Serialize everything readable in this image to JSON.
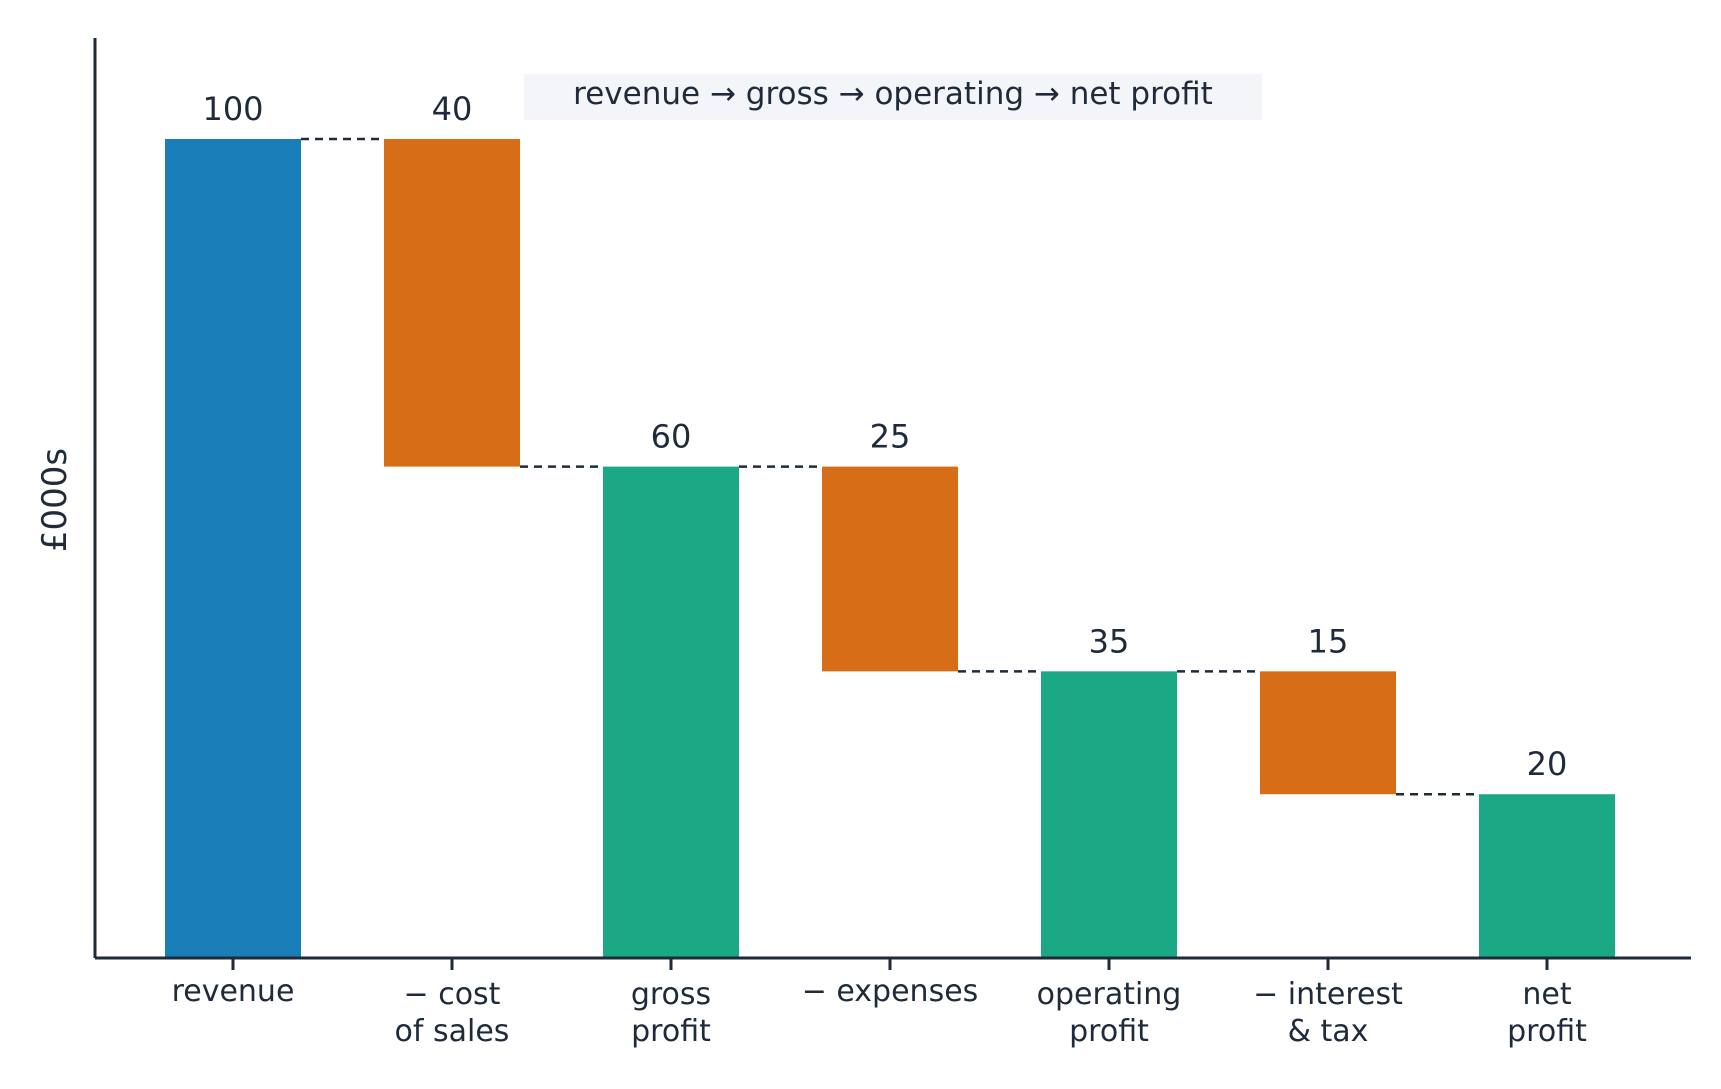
{
  "chart_data": {
    "type": "bar",
    "subtype": "waterfall",
    "title": "revenue → gross → operating → net profit",
    "xlabel": "",
    "ylabel": "£000s",
    "ylim": [
      0,
      106
    ],
    "grid": false,
    "legend": "none",
    "categories": [
      [
        "revenue"
      ],
      [
        "− cost",
        "of sales"
      ],
      [
        "gross",
        "profit"
      ],
      [
        "− expenses"
      ],
      [
        "operating",
        "profit"
      ],
      [
        "− interest",
        "& tax"
      ],
      [
        "net",
        "profit"
      ]
    ],
    "steps": [
      {
        "kind": "total",
        "value": 100,
        "label": "100"
      },
      {
        "kind": "decrease",
        "value": 40,
        "label": "40"
      },
      {
        "kind": "total",
        "value": 60,
        "label": "60"
      },
      {
        "kind": "decrease",
        "value": 25,
        "label": "25"
      },
      {
        "kind": "total",
        "value": 35,
        "label": "35"
      },
      {
        "kind": "decrease",
        "value": 15,
        "label": "15"
      },
      {
        "kind": "total",
        "value": 20,
        "label": "20"
      }
    ],
    "colors": {
      "start_total": "#1a7fb9",
      "decrease": "#d86d18",
      "subtotal": "#1ba884",
      "axis": "#1f2a3a",
      "connector": "#1f2a3a",
      "title_bg": "#f3f5f8"
    }
  }
}
